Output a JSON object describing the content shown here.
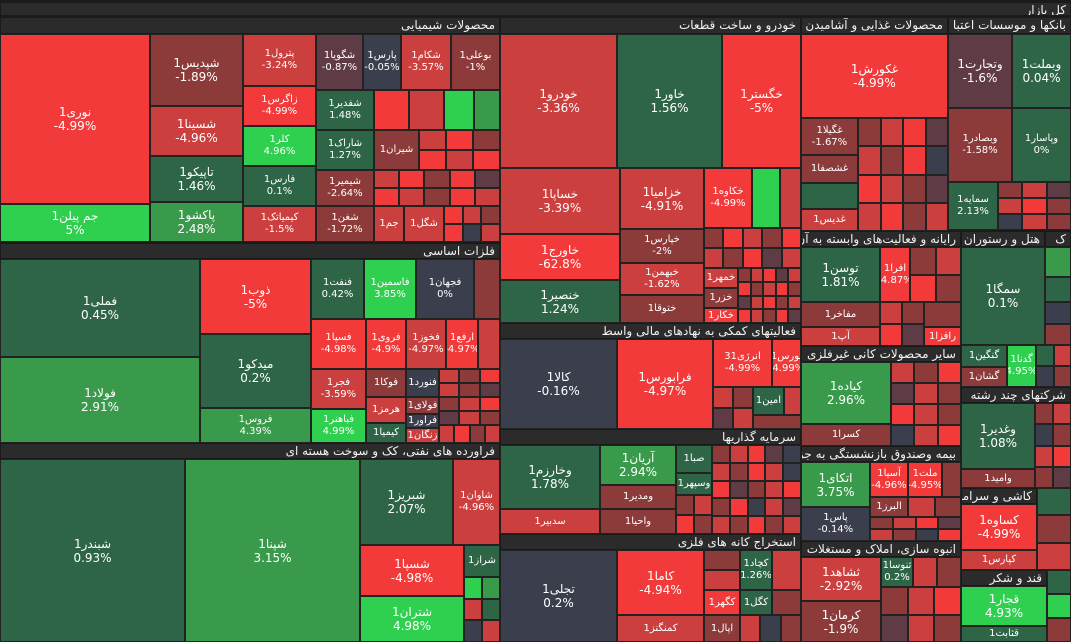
{
  "title": "کل بازار",
  "colors": {
    "r": "#f23a3a",
    "lr": "#cc3f3f",
    "dr": "#8c3a3a",
    "g": "#2fcf50",
    "lg": "#3a9a4b",
    "dg": "#2f6547",
    "n": "#3b3f4d",
    "m": "#5e3b45"
  },
  "chart_data": {
    "type": "treemap",
    "sectors": [
      {
        "name": "محصولات شیمیایی",
        "tiles": [
          {
            "name": "نوری1",
            "change": "-4.99%"
          },
          {
            "name": "جم پیلن1",
            "change": "5%"
          },
          {
            "name": "شپدیس1",
            "change": "-1.89%"
          },
          {
            "name": "شسینا1",
            "change": "-4.96%"
          },
          {
            "name": "تاپیکو1",
            "change": "1.46%"
          },
          {
            "name": "پاکشو1",
            "change": "2.48%"
          },
          {
            "name": "پترول1",
            "change": "-3.24%"
          },
          {
            "name": "زاگرس1",
            "change": "-4.99%"
          },
          {
            "name": "کلر1",
            "change": "4.96%"
          },
          {
            "name": "فارس1",
            "change": "0.1%"
          },
          {
            "name": "کیمیاتک1",
            "change": "-1.5%"
          },
          {
            "name": "شگویا1",
            "change": "-0.87%"
          },
          {
            "name": "شفدیر1",
            "change": "1.48%"
          },
          {
            "name": "شاراک1",
            "change": "1.27%"
          },
          {
            "name": "شیمیر1",
            "change": "-2.64%"
          },
          {
            "name": "شغن1",
            "change": "-1.72%"
          },
          {
            "name": "پارس1",
            "change": "-0.05%"
          },
          {
            "name": "شکام1",
            "change": "-3.57%"
          },
          {
            "name": "بوعلی1",
            "change": "-1%"
          },
          {
            "name": "شیران1",
            "change": ""
          },
          {
            "name": "جم1",
            "change": ""
          },
          {
            "name": "شگل1",
            "change": ""
          }
        ]
      },
      {
        "name": "فلزات اساسی",
        "tiles": [
          {
            "name": "فملی1",
            "change": "0.45%"
          },
          {
            "name": "فولاد1",
            "change": "2.91%"
          },
          {
            "name": "ذوب1",
            "change": "-5%"
          },
          {
            "name": "میدکو1",
            "change": "0.2%"
          },
          {
            "name": "فروس1",
            "change": "4.39%"
          },
          {
            "name": "فنفت1",
            "change": "0.42%"
          },
          {
            "name": "فاسمین1",
            "change": "3.85%"
          },
          {
            "name": "فجهان1",
            "change": "0%"
          },
          {
            "name": "فسپا1",
            "change": "-4.98%"
          },
          {
            "name": "فجر1",
            "change": "-3.59%"
          },
          {
            "name": "فباهنر1",
            "change": "4.99%"
          },
          {
            "name": "فروی1",
            "change": "-4.9%"
          },
          {
            "name": "فخوز1",
            "change": "-4.97%"
          },
          {
            "name": "ارفع1",
            "change": "-4.97%"
          },
          {
            "name": "فوکا1",
            "change": ""
          },
          {
            "name": "فنورد1",
            "change": ""
          },
          {
            "name": "هرمز1",
            "change": ""
          },
          {
            "name": "فولای1",
            "change": ""
          },
          {
            "name": "فرآور1",
            "change": ""
          },
          {
            "name": "کیمیا1",
            "change": ""
          },
          {
            "name": "زنگان1",
            "change": ""
          }
        ]
      },
      {
        "name": "فراورده های نفتی، کک و سوخت هسته ای",
        "tiles": [
          {
            "name": "شبندر1",
            "change": "0.93%"
          },
          {
            "name": "شپنا1",
            "change": "3.15%"
          },
          {
            "name": "شبریز1",
            "change": "2.07%"
          },
          {
            "name": "شاوان1",
            "change": "-4.96%"
          },
          {
            "name": "شسپا1",
            "change": "-4.98%"
          },
          {
            "name": "شتران1",
            "change": "4.98%"
          },
          {
            "name": "شراز1",
            "change": ""
          }
        ]
      },
      {
        "name": "خودرو و ساخت قطعات",
        "tiles": [
          {
            "name": "خودرو1",
            "change": "-3.36%"
          },
          {
            "name": "خاور1",
            "change": "1.56%"
          },
          {
            "name": "خگستر1",
            "change": "-5%"
          },
          {
            "name": "خساپا1",
            "change": "-3.39%"
          },
          {
            "name": "خزامیا1",
            "change": "-4.91%"
          },
          {
            "name": "خکاوه1",
            "change": "-4.99%"
          },
          {
            "name": "خاورج1",
            "change": "-62.8%"
          },
          {
            "name": "خپارس1",
            "change": "-2%"
          },
          {
            "name": "خبهمن1",
            "change": "-1.62%"
          },
          {
            "name": "خنصیر1",
            "change": "1.24%"
          },
          {
            "name": "خمهر1",
            "change": ""
          },
          {
            "name": "ختوقا1",
            "change": ""
          },
          {
            "name": "خزر1",
            "change": ""
          },
          {
            "name": "خکار1",
            "change": ""
          }
        ]
      },
      {
        "name": "فعالیتهای کمکی به نهادهای مالی واسط",
        "tiles": [
          {
            "name": "کالا1",
            "change": "-0.16%"
          },
          {
            "name": "فرابورس1",
            "change": "-4.97%"
          },
          {
            "name": "انرژی31",
            "change": "-4.99%"
          },
          {
            "name": "بورس1",
            "change": "-4.99%"
          },
          {
            "name": "امین1",
            "change": ""
          }
        ]
      },
      {
        "name": "سرمایه گذاریها",
        "tiles": [
          {
            "name": "وخارزم1",
            "change": "1.78%"
          },
          {
            "name": "آریان1",
            "change": "2.94%"
          },
          {
            "name": "صبا1",
            "change": ""
          },
          {
            "name": "وسپهر1",
            "change": ""
          },
          {
            "name": "ومدیر1",
            "change": ""
          },
          {
            "name": "سدبیر1",
            "change": ""
          },
          {
            "name": "واحیا1",
            "change": ""
          }
        ]
      },
      {
        "name": "استخراج کانه های فلزی",
        "tiles": [
          {
            "name": "تجلی1",
            "change": "0.2%"
          },
          {
            "name": "کاما1",
            "change": "-4.94%"
          },
          {
            "name": "کگهر1",
            "change": ""
          },
          {
            "name": "کچاد1",
            "change": "1.26%"
          },
          {
            "name": "کگل1",
            "change": ""
          },
          {
            "name": "کمنگنز1",
            "change": ""
          },
          {
            "name": "اپال1",
            "change": ""
          }
        ]
      },
      {
        "name": "محصولات غذایی و آشامیدن",
        "tiles": [
          {
            "name": "غکورش1",
            "change": "-4.99%"
          },
          {
            "name": "غگیلا1",
            "change": "-1.67%"
          },
          {
            "name": "غشصفا1",
            "change": ""
          },
          {
            "name": "غناب1",
            "change": ""
          },
          {
            "name": "غدیس1",
            "change": ""
          }
        ]
      },
      {
        "name": "بانکها و موسسات اعتبا",
        "tiles": [
          {
            "name": "وبملت1",
            "change": "0.04%"
          },
          {
            "name": "وتجارت1",
            "change": "-1.6%"
          },
          {
            "name": "وبصادر1",
            "change": "-1.58%"
          },
          {
            "name": "وپاسار1",
            "change": "0%"
          },
          {
            "name": "سمایه1",
            "change": "2.13%"
          }
        ]
      },
      {
        "name": "رایانه و فعالیت‌های وابسته به آن",
        "tiles": [
          {
            "name": "توسن1",
            "change": "1.81%"
          },
          {
            "name": "افرا1",
            "change": "-4.87%"
          },
          {
            "name": "مفاخر1",
            "change": ""
          },
          {
            "name": "آپ1",
            "change": ""
          },
          {
            "name": "رافزا1",
            "change": ""
          }
        ]
      },
      {
        "name": "هتل و رستوران",
        "tiles": [
          {
            "name": "سمگا1",
            "change": "0.1%"
          },
          {
            "name": "گنگین1",
            "change": ""
          },
          {
            "name": "گشان1",
            "change": ""
          },
          {
            "name": "گدنا1",
            "change": "4.95%"
          }
        ]
      },
      {
        "name": "سایر محصولات کانی غیرفلزی",
        "tiles": [
          {
            "name": "کیاده1",
            "change": "2.96%"
          },
          {
            "name": "کسرا1",
            "change": ""
          }
        ]
      },
      {
        "name": "شرکتهای چند رشته",
        "tiles": [
          {
            "name": "وغدیر1",
            "change": "1.08%"
          },
          {
            "name": "وامید1",
            "change": ""
          }
        ]
      },
      {
        "name": "بیمه وصندوق بازنشستگی به جز",
        "tiles": [
          {
            "name": "اتکای1",
            "change": "3.75%"
          },
          {
            "name": "آسیا1",
            "change": "-4.96%"
          },
          {
            "name": "ملت1",
            "change": "-4.95%"
          },
          {
            "name": "البرز1",
            "change": ""
          },
          {
            "name": "پاس1",
            "change": "-0.14%"
          }
        ]
      },
      {
        "name": "کاشی و سرامیک",
        "tiles": [
          {
            "name": "کساوه1",
            "change": "-4.99%"
          },
          {
            "name": "کپارس1",
            "change": ""
          }
        ]
      },
      {
        "name": "انبوه سازی، املاک و مستغلات",
        "tiles": [
          {
            "name": "ثشاهد1",
            "change": "-2.92%"
          },
          {
            "name": "ثنوسا1",
            "change": "0.2%"
          },
          {
            "name": "کرمان1",
            "change": "-1.9%"
          }
        ]
      },
      {
        "name": "قند و شکر",
        "tiles": [
          {
            "name": "قجار1",
            "change": "4.93%"
          },
          {
            "name": "قثابت1",
            "change": ""
          }
        ]
      },
      {
        "name": "ک",
        "tiles": []
      }
    ]
  }
}
